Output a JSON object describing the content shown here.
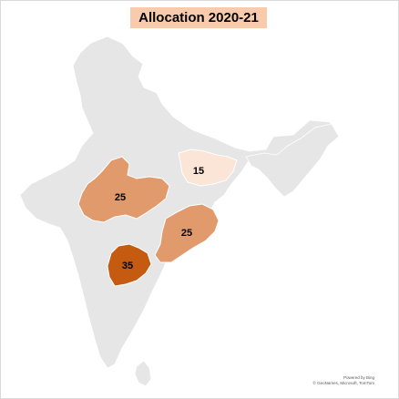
{
  "title": "Allocation 2020-21",
  "colors": {
    "title_bg": "#f8cbad",
    "land": "#e6e6e6",
    "region_15": "#fbe5d6",
    "region_25": "#e09a6b",
    "region_35": "#c55a11"
  },
  "regions": [
    {
      "id": "bihar",
      "value": 15,
      "label": "15"
    },
    {
      "id": "madhya-pradesh",
      "value": 25,
      "label": "25"
    },
    {
      "id": "odisha",
      "value": 25,
      "label": "25"
    },
    {
      "id": "telangana",
      "value": 35,
      "label": "35"
    }
  ],
  "attribution": {
    "line1": "Powered by Bing",
    "line2": "© GeoNames, Microsoft, TomTom"
  }
}
